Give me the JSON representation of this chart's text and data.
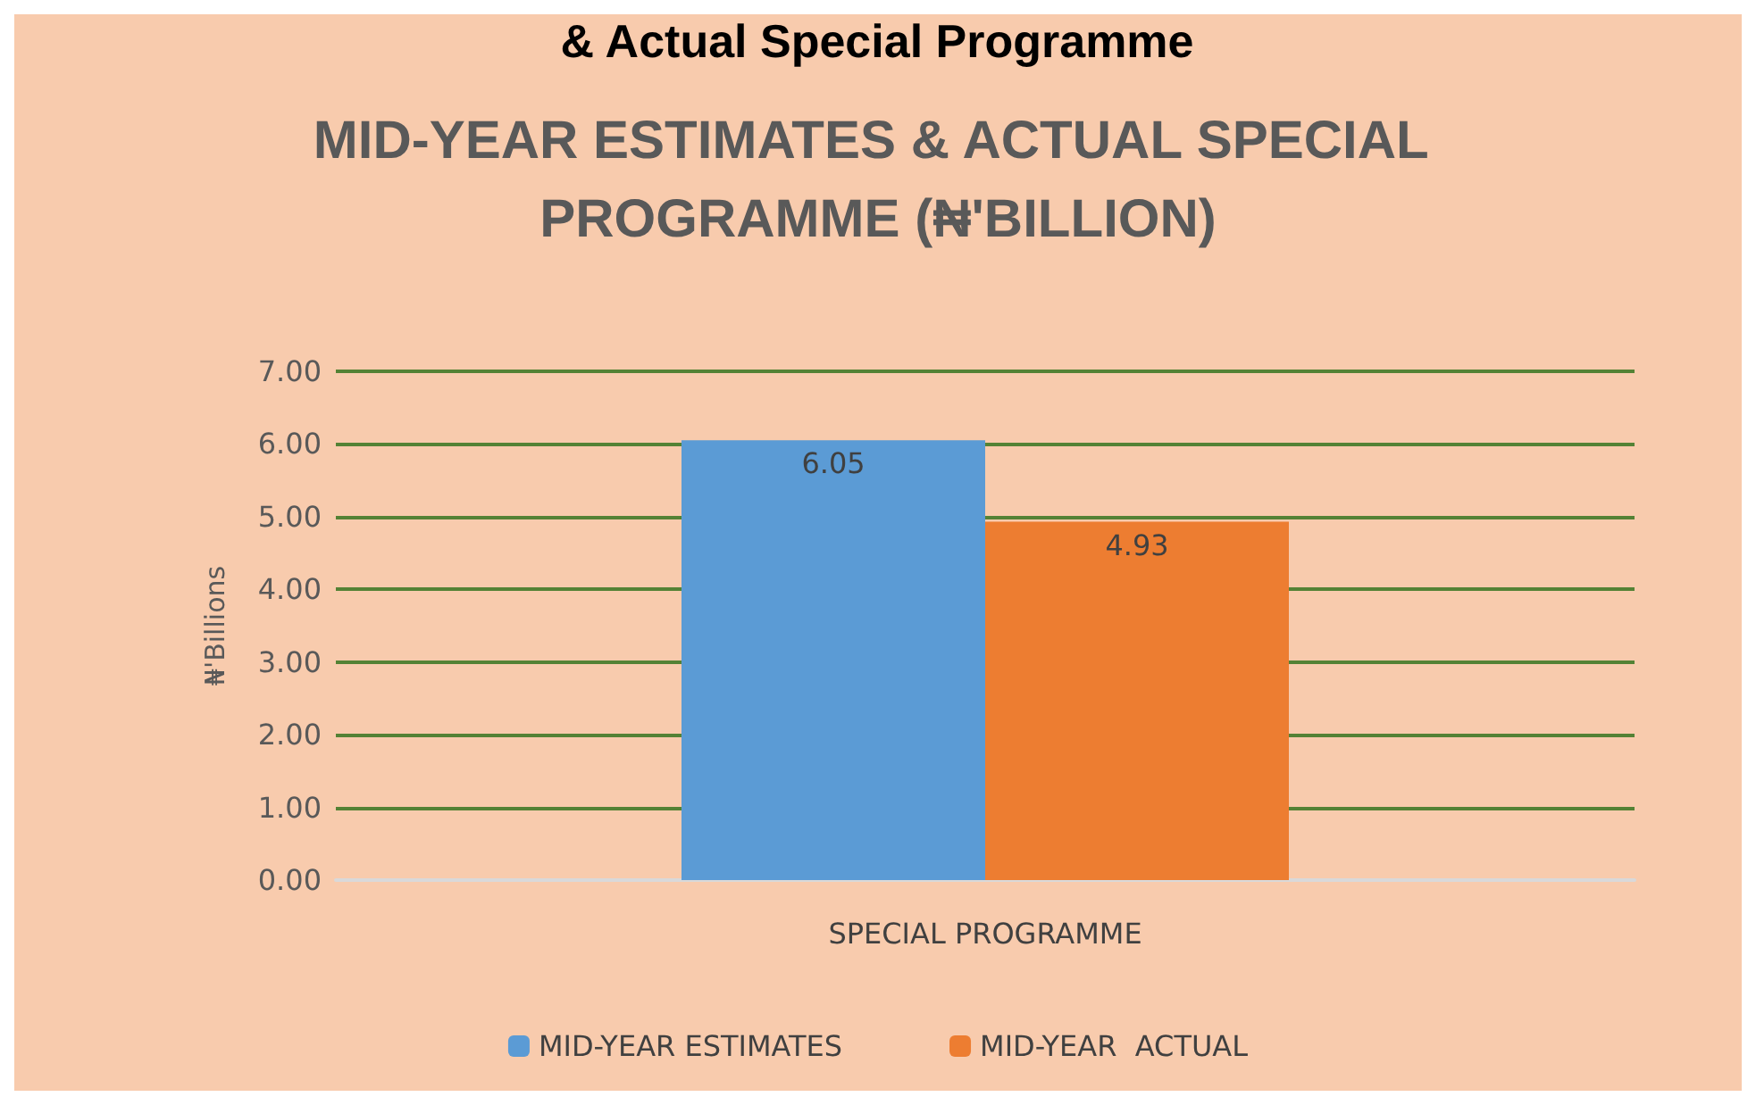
{
  "chart_data": {
    "type": "bar",
    "title": "MID-YEAR ESTIMATES & ACTUAL SPECIAL PROGRAMME (₦'BILLION)",
    "annotations": [
      "& Actual Special Programme"
    ],
    "categories": [
      "SPECIAL PROGRAMME"
    ],
    "series": [
      {
        "name": "MID-YEAR ESTIMATES",
        "color": "#5b9bd5",
        "values": [
          6.05
        ]
      },
      {
        "name": "MID-YEAR  ACTUAL",
        "color": "#ed7d31",
        "values": [
          4.93
        ]
      }
    ],
    "ylabel": "₦'Billions",
    "ylim": [
      0,
      7
    ],
    "yticks": [
      {
        "value": 0,
        "label": "0.00"
      },
      {
        "value": 1,
        "label": "1.00"
      },
      {
        "value": 2,
        "label": "2.00"
      },
      {
        "value": 3,
        "label": "3.00"
      },
      {
        "value": 4,
        "label": "4.00"
      },
      {
        "value": 5,
        "label": "5.00"
      },
      {
        "value": 6,
        "label": "6.00"
      },
      {
        "value": 7,
        "label": "7.00"
      }
    ],
    "grid": "y",
    "legend": "bottom",
    "data_labels": true
  }
}
